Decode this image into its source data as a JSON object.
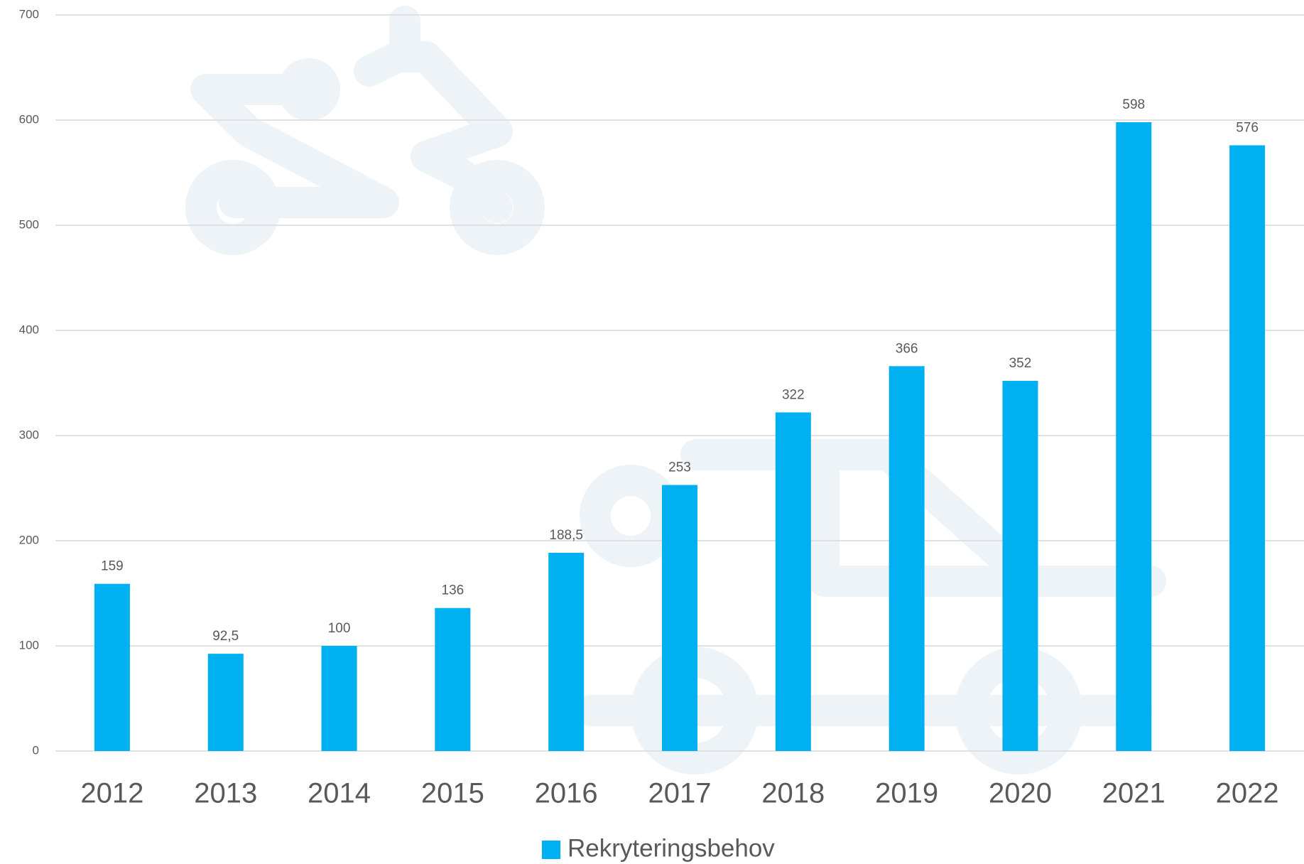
{
  "chart_data": {
    "type": "bar",
    "categories": [
      "2012",
      "2013",
      "2014",
      "2015",
      "2016",
      "2017",
      "2018",
      "2019",
      "2020",
      "2021",
      "2022"
    ],
    "series": [
      {
        "name": "Rekryteringsbehov",
        "color": "#00b0f0",
        "values": [
          159,
          92.5,
          100,
          136,
          188.5,
          253,
          322,
          366,
          352,
          598,
          576
        ],
        "value_labels": [
          "159",
          "92,5",
          "100",
          "136",
          "188,5",
          "253",
          "322",
          "366",
          "352",
          "598",
          "576"
        ]
      }
    ],
    "ylim": [
      0,
      700
    ],
    "yticks": [
      0,
      100,
      200,
      300,
      400,
      500,
      600,
      700
    ],
    "grid": true,
    "legend": "bottom"
  }
}
